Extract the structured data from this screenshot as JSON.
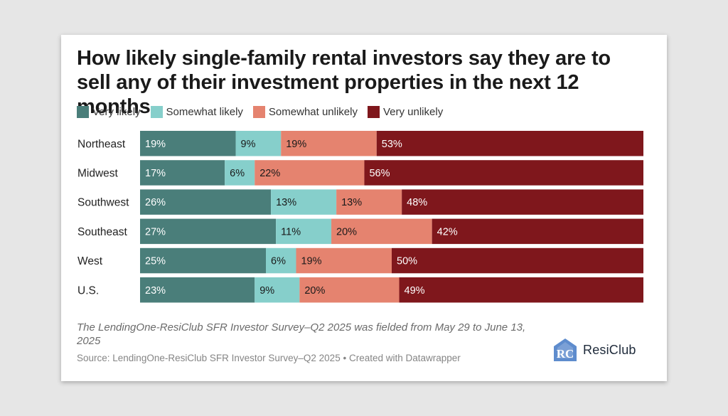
{
  "chart_data": {
    "type": "bar",
    "orientation": "horizontal-stacked-100",
    "title": "How likely single-family rental investors say they are to sell any of their investment properties in the next 12 months",
    "categories": [
      "Northeast",
      "Midwest",
      "Southwest",
      "Southeast",
      "West",
      "U.S."
    ],
    "series": [
      {
        "name": "Very likely",
        "color": "#4a7e7a",
        "values": [
          19,
          17,
          26,
          27,
          25,
          23
        ]
      },
      {
        "name": "Somewhat likely",
        "color": "#86cfcb",
        "values": [
          9,
          6,
          13,
          11,
          6,
          9
        ]
      },
      {
        "name": "Somewhat unlikely",
        "color": "#e5836f",
        "values": [
          19,
          22,
          13,
          20,
          19,
          20
        ]
      },
      {
        "name": "Very unlikely",
        "color": "#7f171c",
        "values": [
          53,
          56,
          48,
          42,
          50,
          49
        ]
      }
    ],
    "value_suffix": "%",
    "legend_position": "top-left"
  },
  "note": "The LendingOne-ResiClub SFR Investor Survey–Q2 2025 was fielded from May 29 to June 13, 2025",
  "source": "Source: LendingOne-ResiClub SFR Investor Survey–Q2 2025",
  "credit": "• Created with Datawrapper",
  "logo": {
    "mark": "RC",
    "text": "ResiClub",
    "color": "#5e8ccd"
  }
}
